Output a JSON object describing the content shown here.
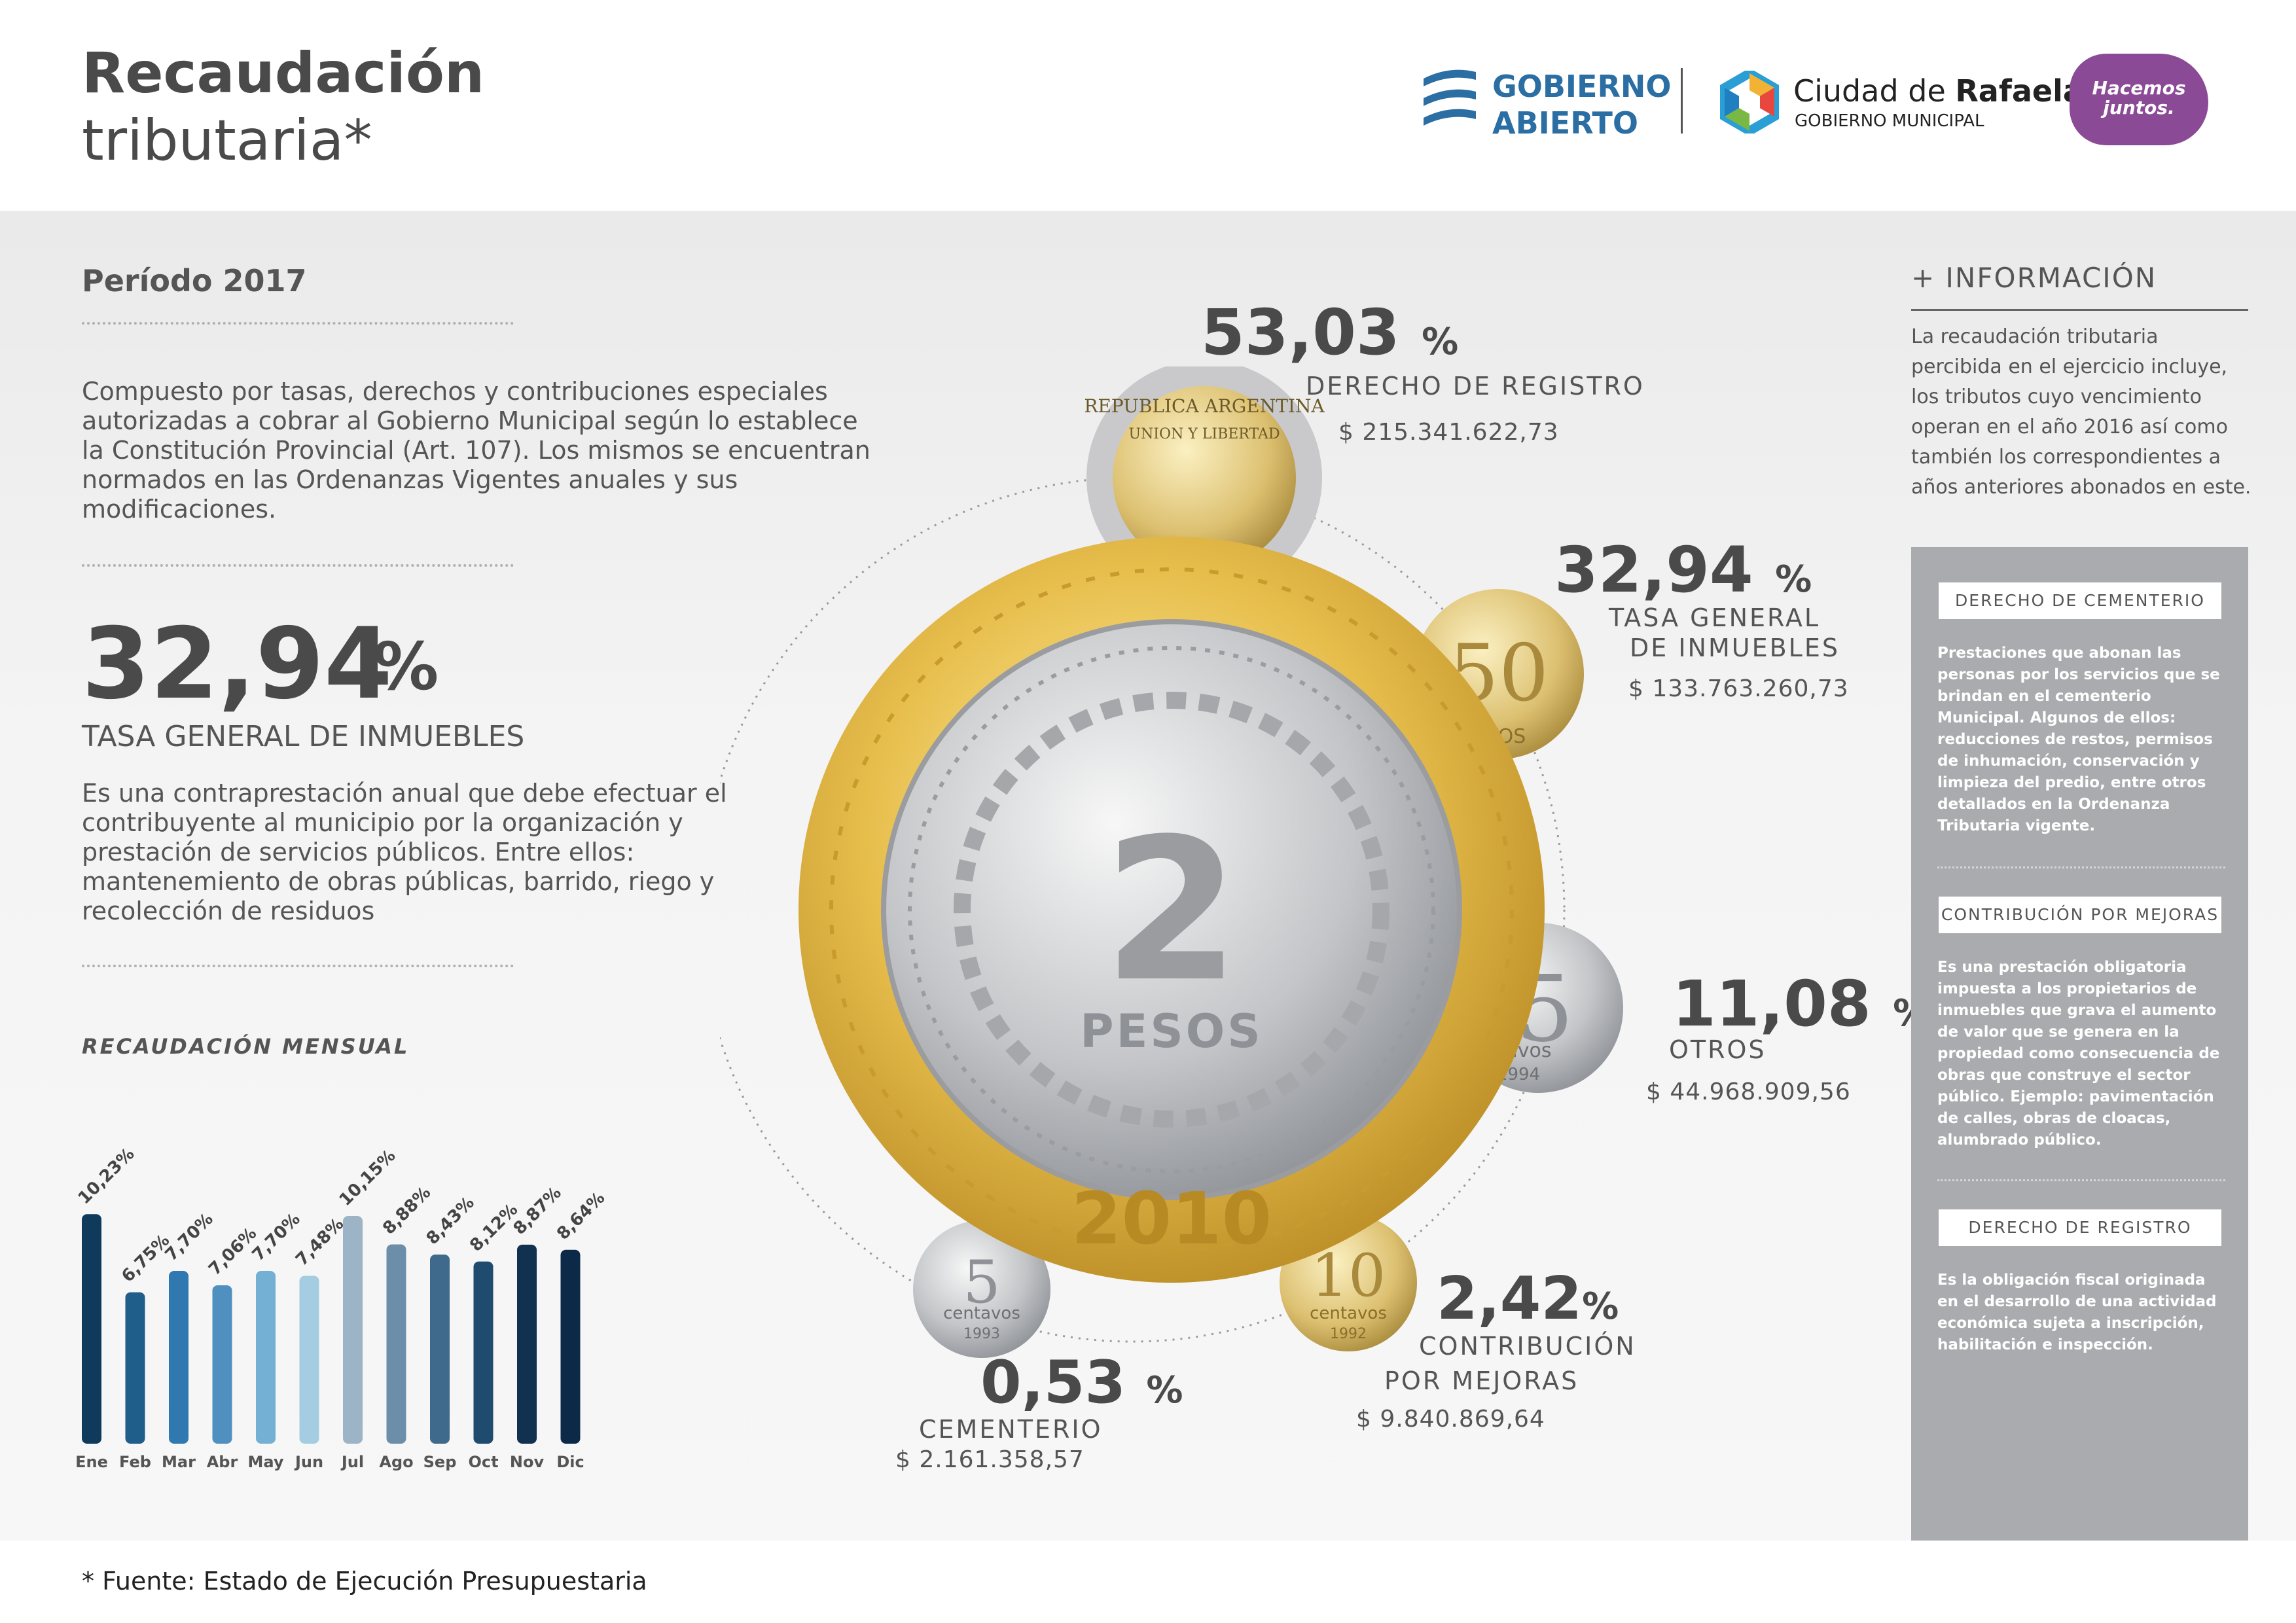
{
  "header": {
    "title_line1": "Recaudación",
    "title_line2": "tributaria*",
    "logo_ga_line1": "GOBIERNO",
    "logo_ga_line2": "ABIERTO",
    "logo_city_pre": "Ciudad de ",
    "logo_city_bold": "Rafaela",
    "logo_city_sub": "GOBIERNO MUNICIPAL",
    "logo_hj_line1": "Hacemos",
    "logo_hj_line2": "juntos."
  },
  "left": {
    "period": "Período 2017",
    "intro": "Compuesto por tasas, derechos y contribuciones especiales autorizadas a cobrar al Gobierno Municipal según lo establece la Constitución Provincial (Art. 107). Los mismos se encuentran normados en las Ordenanzas Vigentes anuales y sus modificaciones.",
    "big_pct": "32,94",
    "big_pct_unit": "%",
    "big_label": "TASA GENERAL DE INMUEBLES",
    "big_desc": "Es una contraprestación anual que debe efectuar el contribuyente al municipio por la organización y prestación de servicios públicos. Entre ellos: mantenemiento de obras públicas, barrido, riego y recolección de residuos",
    "chart_title": "RECAUDACIÓN MENSUAL"
  },
  "chart_data": {
    "type": "bar",
    "title": "RECAUDACIÓN MENSUAL",
    "categories": [
      "Ene",
      "Feb",
      "Mar",
      "Abr",
      "May",
      "Jun",
      "Jul",
      "Ago",
      "Sep",
      "Oct",
      "Nov",
      "Dic"
    ],
    "values": [
      10.23,
      6.75,
      7.7,
      7.06,
      7.7,
      7.48,
      10.15,
      8.88,
      8.43,
      8.12,
      8.87,
      8.64
    ],
    "labels": [
      "10,23%",
      "6,75%",
      "7,70%",
      "7,06%",
      "7,70%",
      "7,48%",
      "10,15%",
      "8,88%",
      "8,43%",
      "8,12%",
      "8,87%",
      "8,64%"
    ],
    "colors": [
      "#0f3a5c",
      "#1f5e8a",
      "#2f79b0",
      "#4f90c0",
      "#74b0d4",
      "#a4cde2",
      "#9db4c6",
      "#6c8ea8",
      "#3f6a8b",
      "#1f4b6e",
      "#12304f",
      "#0c2a48"
    ],
    "ylim": [
      0,
      10.5
    ]
  },
  "coin_chart": {
    "segments": [
      {
        "pct": "53,03",
        "label": "DERECHO DE REGISTRO",
        "amount": "$ 215.341.622,73"
      },
      {
        "pct": "32,94",
        "label_line1": "TASA GENERAL",
        "label_line2": "DE INMUEBLES",
        "amount": "$ 133.763.260,73"
      },
      {
        "pct": "11,08",
        "label": "OTROS",
        "amount": "$ 44.968.909,56"
      },
      {
        "pct": "2,42",
        "label_line1": "CONTRIBUCIÓN",
        "label_line2": "POR MEJORAS",
        "amount": "$ 9.840.869,64"
      },
      {
        "pct": "0,53",
        "label": "CEMENTERIO",
        "amount": "$ 2.161.358,57"
      }
    ],
    "unit": "%",
    "coin_texts": {
      "value": "2",
      "currency": "PESOS",
      "year": "2010",
      "c50": "50",
      "c50_sub": "VOS",
      "c5": "5",
      "c5_sub": "ntavos",
      "c5_year": "1994",
      "c5b": "5",
      "c5b_sub": "centavos",
      "c5b_year": "1993",
      "c10": "10",
      "c10_sub": "centavos",
      "c10_year": "1992",
      "c1": "REPUBLICA ARGENTINA",
      "c1b": "UNION Y LIBERTAD"
    }
  },
  "info": {
    "title": "+ INFORMACIÓN",
    "text": "La recaudación tributaria percibida en  el ejercicio incluye, los tributos cuyo vencimiento operan en el año 2016 así como también los correspondientes a años anteriores abonados en este.",
    "boxes": [
      {
        "label": "DERECHO DE CEMENTERIO",
        "text": "Prestaciones que abonan las personas por los servicios que se brindan en el cementerio Municipal. Algunos de ellos: reducciones de restos, permisos de inhumación, conservación y limpieza del predio,  entre otros detallados en la Ordenanza Tributaria vigente."
      },
      {
        "label": "CONTRIBUCIÓN POR MEJORAS",
        "text": "Es una prestación obligatoria impuesta a los propietarios de inmuebles que grava el aumento de valor que se genera en la propiedad como consecuencia de obras que construye el sector público. Ejemplo: pavimentación de calles, obras de cloacas, alumbrado público."
      },
      {
        "label": "DERECHO DE REGISTRO",
        "text": "Es la obligación fiscal originada en el desarrollo de una actividad económica sujeta a inscripción, habilitación e inspección."
      }
    ]
  },
  "footer": {
    "source": "* Fuente: Estado de Ejecución Presupuestaria"
  }
}
